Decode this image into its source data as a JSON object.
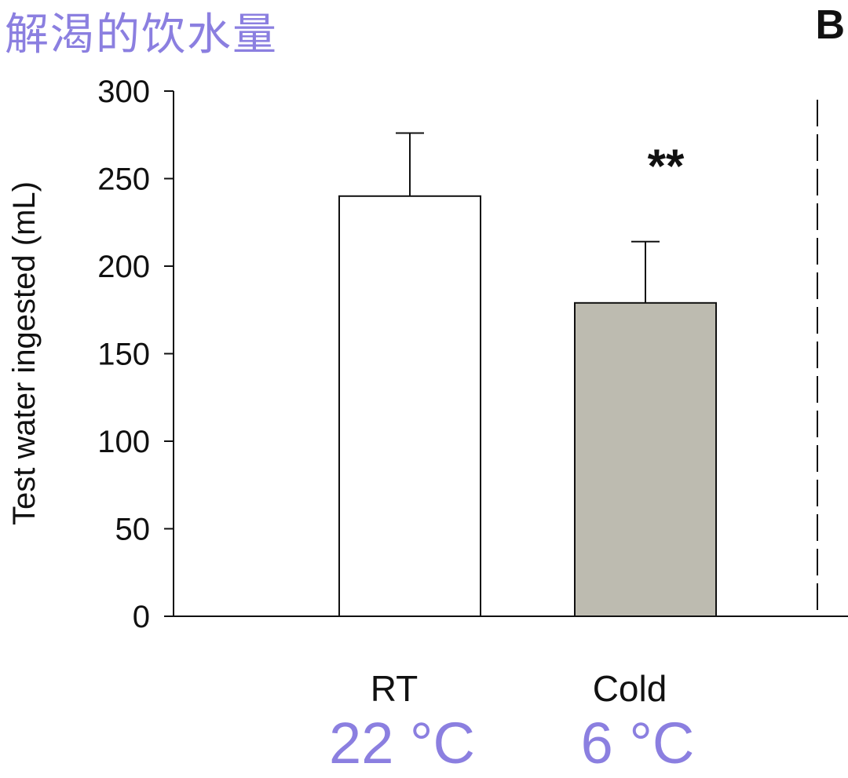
{
  "title": "解渴的饮水量",
  "panel_letter": "B",
  "colors": {
    "title": "#8b7fe0",
    "bar_rt": "#ffffff",
    "bar_cold": "#bdbbb0",
    "axis": "#111111",
    "temp_label": "#8b7fe0"
  },
  "chart_data": {
    "type": "bar",
    "ylabel": "Test water ingested (mL)",
    "ylim": [
      0,
      300
    ],
    "yticks": [
      0,
      50,
      100,
      150,
      200,
      250,
      300
    ],
    "categories": [
      "RT",
      "Cold"
    ],
    "sublabels": [
      "22 °C",
      "6 °C"
    ],
    "values": [
      240,
      179
    ],
    "errors": [
      36,
      35
    ],
    "significance": [
      "",
      "**"
    ],
    "grid": false
  }
}
